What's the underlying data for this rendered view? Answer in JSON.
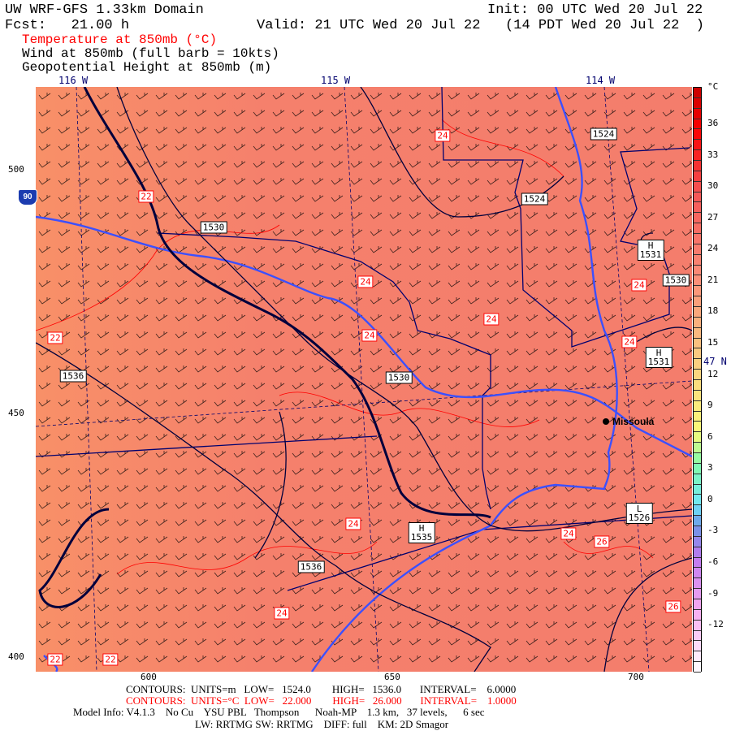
{
  "header": {
    "title": "UW WRF-GFS 1.33km Domain",
    "init": "Init: 00 UTC Wed 20 Jul 22",
    "fcst": "Fcst:   21.00 h",
    "valid": "Valid: 21 UTC Wed 20 Jul 22   (14 PDT Wed 20 Jul 22  )",
    "fields": [
      "Temperature at 850mb (°C)",
      "Wind at 850mb (full barb = 10kts)",
      "Geopotential Height at 850mb (m)"
    ]
  },
  "axes": {
    "lon": [
      "116 W",
      "115 W",
      "114 W"
    ],
    "lat": "47 N",
    "left": [
      "500",
      "450",
      "400"
    ],
    "bottom": [
      "600",
      "650",
      "700"
    ]
  },
  "places": {
    "city": "Missoula",
    "highway": "90"
  },
  "height_labels": [
    "1530",
    "1524",
    "1524",
    "H\n1531",
    "1530",
    "H\n1531",
    "1536",
    "1530",
    "H\n1535",
    "L\n1526",
    "1536"
  ],
  "temp_labels": [
    "24",
    "22",
    "24",
    "24",
    "24",
    "24",
    "24",
    "22",
    "24",
    "24",
    "26",
    "26",
    "24",
    "22",
    "22"
  ],
  "colorbar": {
    "unit": "°C",
    "ticks": [
      "36",
      "33",
      "30",
      "27",
      "24",
      "21",
      "18",
      "15",
      "12",
      "9",
      "6",
      "3",
      "0",
      "-3",
      "-6",
      "-9",
      "-12"
    ],
    "min": -16,
    "max": 40
  },
  "colors": {
    "fill": "#f5806c",
    "fill_west": "#f89068",
    "height_contour": "#00003c",
    "temp_contour": "#ff0000",
    "river": "#3c50ff",
    "county": "#00006e"
  },
  "footer": {
    "c1": "CONTOURS:  UNITS=m   LOW=   1524.0        HIGH=   1536.0       INTERVAL=    6.0000",
    "c2": "CONTOURS:  UNITS=°C  LOW=   22.000        HIGH=   26.000       INTERVAL=    1.0000",
    "model": "Model Info: V4.1.3    No Cu    YSU PBL   Thompson      Noah-MP    1.3 km,   37 levels,      6 sec",
    "phys": "LW: RRTMG SW: RRTMG    DIFF: full    KM: 2D Smagor"
  }
}
